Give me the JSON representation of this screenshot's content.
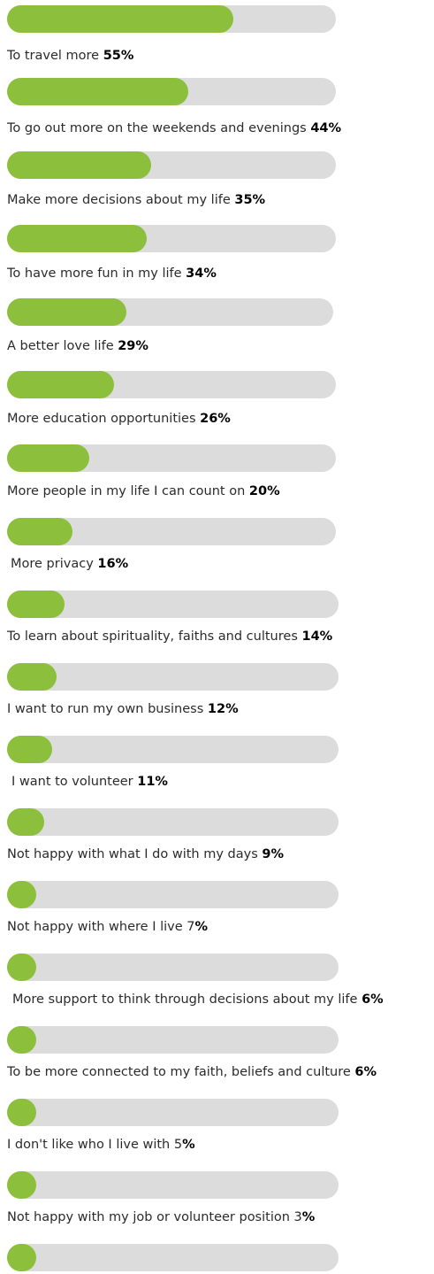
{
  "chart_data": {
    "type": "bar",
    "colors": {
      "fill": "#8cc03c",
      "track": "#dcdcdc"
    },
    "items": [
      {
        "label": "To travel more",
        "prefix": " ",
        "value": 55,
        "pct": "55%",
        "pct_bold": "55%",
        "pct_plain": ""
      },
      {
        "label": "To go out more on the weekends and evenings",
        "prefix": " ",
        "value": 44,
        "pct": "44%",
        "pct_bold": "44%",
        "pct_plain": ""
      },
      {
        "label": "Make more decisions about my life",
        "prefix": " ",
        "value": 35,
        "pct": "35%",
        "pct_bold": "35%",
        "pct_plain": ""
      },
      {
        "label": "To have more fun in my life",
        "prefix": " ",
        "value": 34,
        "pct": "34%",
        "pct_bold": "34%",
        "pct_plain": ""
      },
      {
        "label": "A better love life",
        "prefix": " ",
        "value": 29,
        "pct": "29%",
        "pct_bold": "29%",
        "pct_plain": ""
      },
      {
        "label": "More education opportunities",
        "prefix": " ",
        "value": 26,
        "pct": "26%",
        "pct_bold": "26%",
        "pct_plain": ""
      },
      {
        "label": "More people in my life I can count on",
        "prefix": " ",
        "value": 20,
        "pct": "20%",
        "pct_bold": "20%",
        "pct_plain": ""
      },
      {
        "label": "More privacy",
        "prefix": " ",
        "value": 16,
        "pct": "16%",
        "pct_bold": "16%",
        "pct_plain": ""
      },
      {
        "label": "To learn about spirituality, faiths and cultures",
        "prefix": " ",
        "value": 14,
        "pct": "14%",
        "pct_bold": "14%",
        "pct_plain": ""
      },
      {
        "label": "I want to run my own business",
        "prefix": " ",
        "value": 12,
        "pct": "12%",
        "pct_bold": "12%",
        "pct_plain": ""
      },
      {
        "label": "I want to volunteer",
        "prefix": " ",
        "value": 11,
        "pct": "11%",
        "pct_bold": "11%",
        "pct_plain": ""
      },
      {
        "label": "Not happy with what I do with my days",
        "prefix": " ",
        "value": 9,
        "pct": "9%",
        "pct_bold": "9%",
        "pct_plain": ""
      },
      {
        "label": "Not happy with where I live",
        "prefix": " ",
        "value": 7,
        "pct": "7%",
        "pct_bold": "%",
        "pct_plain": "7"
      },
      {
        "label": "More support to think through decisions about my life",
        "prefix": " ",
        "value": 6,
        "pct": "6%",
        "pct_bold": "6%",
        "pct_plain": ""
      },
      {
        "label": "To be more connected to my faith, beliefs and culture",
        "prefix": " ",
        "value": 6,
        "pct": "6%",
        "pct_bold": "6%",
        "pct_plain": ""
      },
      {
        "label": "I don't like who I live with",
        "prefix": " ",
        "value": 5,
        "pct": "5%",
        "pct_bold": "%",
        "pct_plain": "5"
      },
      {
        "label": "Not happy with my job or volunteer position",
        "prefix": " ",
        "value": 3,
        "pct": "3%",
        "pct_bold": "%",
        "pct_plain": "3"
      }
    ]
  }
}
